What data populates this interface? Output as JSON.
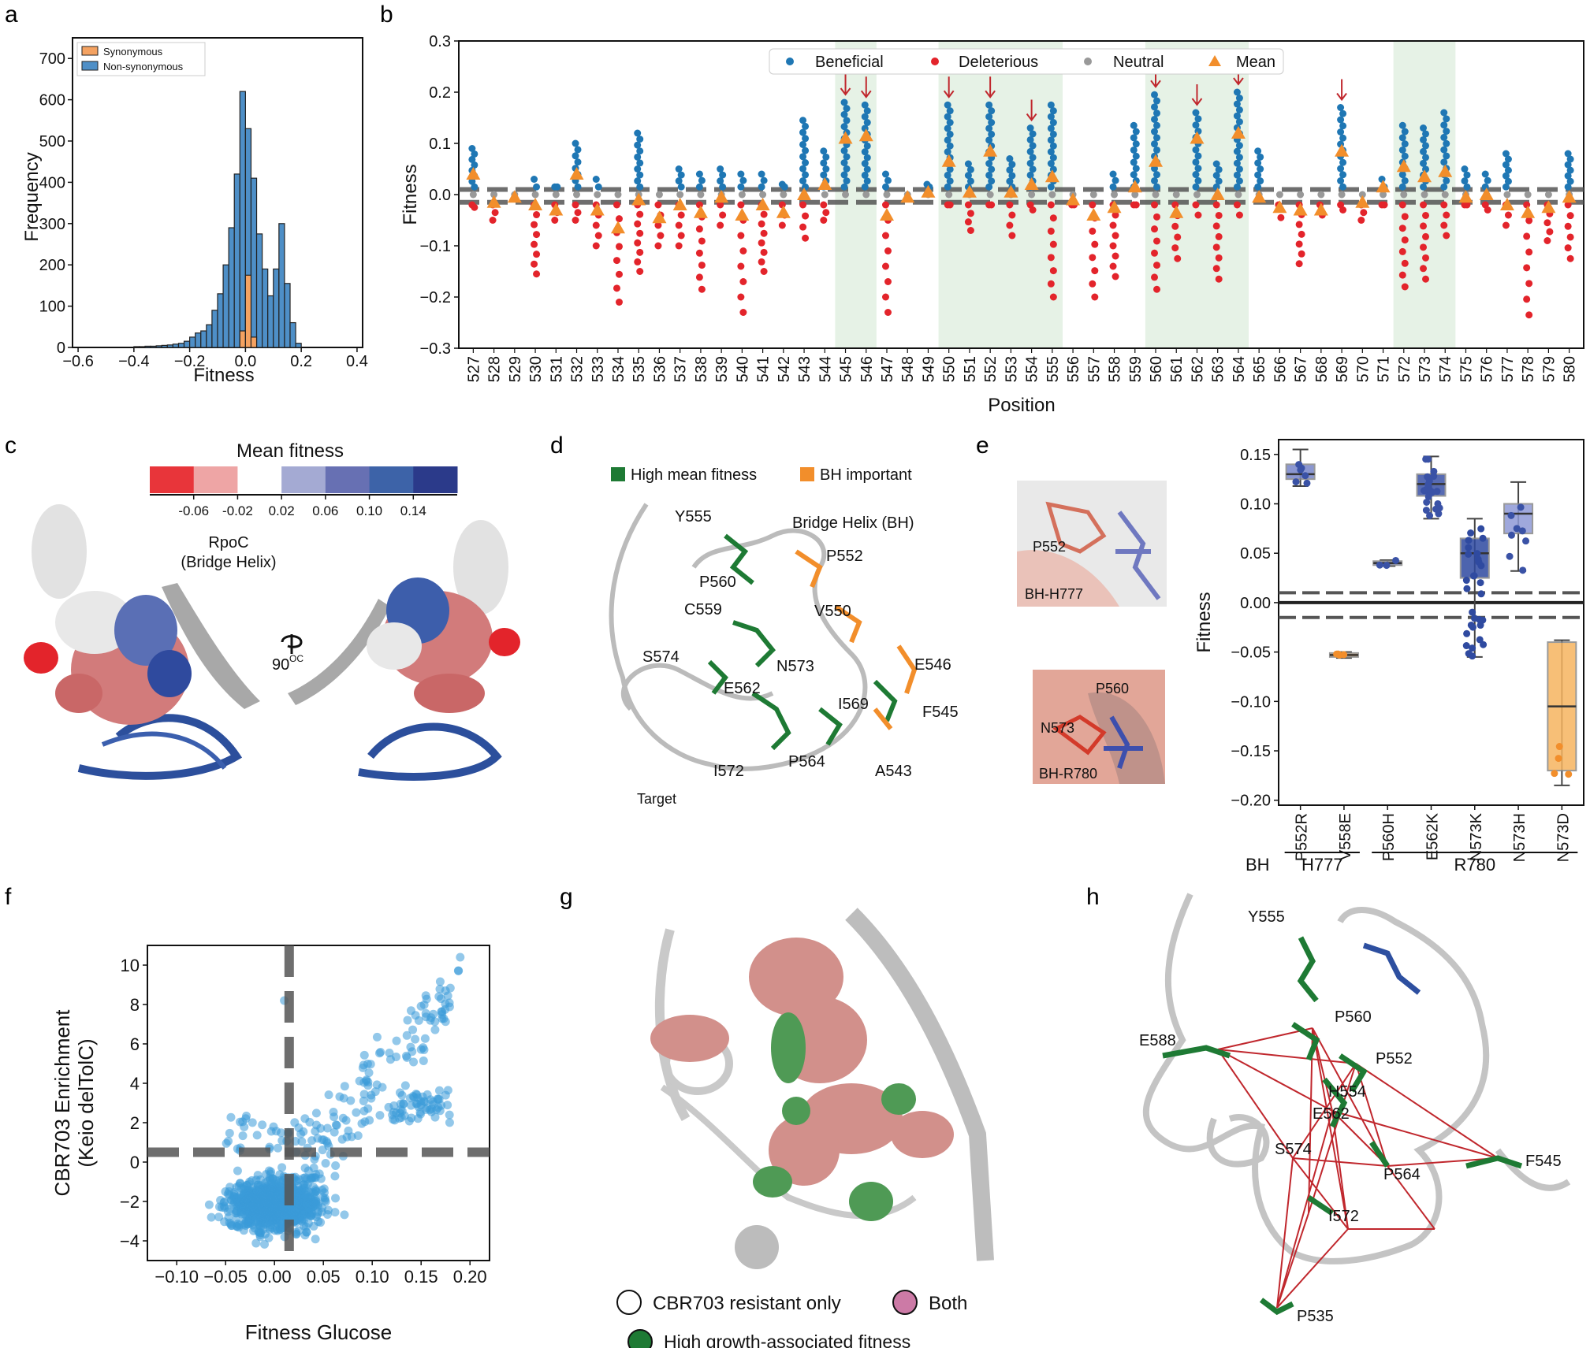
{
  "panels": [
    "a",
    "b",
    "c",
    "d",
    "e",
    "f",
    "g",
    "h"
  ],
  "colors": {
    "beneficial": "#1f77b4",
    "deleterious": "#e3242b",
    "neutral": "#999999",
    "mean": "#f28e2b",
    "synonymous": "#f4a261",
    "nonsyn": "#4e8fc7",
    "green": "#1e7a34",
    "orange": "#f28e2b",
    "scatter": "#3a9ad9",
    "shade": "#e6f2e6",
    "dash": "#555555"
  },
  "chart_data": [
    {
      "id": "a",
      "type": "bar",
      "xlabel": "Fitness",
      "ylabel": "Frequency",
      "xlim": [
        -0.62,
        0.42
      ],
      "ylim": [
        0,
        750
      ],
      "xticks": [
        "−0.6",
        "−0.4",
        "−0.2",
        "0.0",
        "0.2",
        "0.4"
      ],
      "yticks": [
        "0",
        "100",
        "200",
        "300",
        "400",
        "500",
        "600",
        "700"
      ],
      "legend": [
        "Synonymous",
        "Non-synonymous"
      ],
      "bin_width": 0.02,
      "series": [
        {
          "name": "Non-synonymous",
          "bin_starts": [
            -0.4,
            -0.38,
            -0.36,
            -0.34,
            -0.32,
            -0.3,
            -0.28,
            -0.26,
            -0.24,
            -0.22,
            -0.2,
            -0.18,
            -0.16,
            -0.14,
            -0.12,
            -0.1,
            -0.08,
            -0.06,
            -0.04,
            -0.02,
            0.0,
            0.02,
            0.04,
            0.06,
            0.08,
            0.1,
            0.12,
            0.14,
            0.16,
            0.18
          ],
          "values": [
            2,
            2,
            3,
            3,
            4,
            5,
            6,
            8,
            10,
            15,
            25,
            35,
            40,
            55,
            90,
            130,
            200,
            290,
            420,
            620,
            530,
            410,
            275,
            190,
            125,
            190,
            300,
            155,
            60,
            10
          ]
        },
        {
          "name": "Synonymous",
          "bin_starts": [
            -0.02,
            0.0,
            0.02
          ],
          "values": [
            40,
            175,
            25
          ]
        }
      ]
    },
    {
      "id": "b",
      "type": "scatter",
      "xlabel": "Position",
      "ylabel": "Fitness",
      "ylim": [
        -0.3,
        0.3
      ],
      "yticks": [
        "−0.3",
        "−0.2",
        "−0.1",
        "0.0",
        "0.1",
        "0.2",
        "0.3"
      ],
      "positions": [
        "527",
        "528",
        "529",
        "530",
        "531",
        "532",
        "533",
        "534",
        "535",
        "536",
        "537",
        "538",
        "539",
        "540",
        "541",
        "542",
        "543",
        "544",
        "545",
        "546",
        "547",
        "548",
        "549",
        "550",
        "551",
        "552",
        "553",
        "554",
        "555",
        "556",
        "557",
        "558",
        "559",
        "560",
        "561",
        "562",
        "563",
        "564",
        "565",
        "566",
        "567",
        "568",
        "569",
        "570",
        "571",
        "572",
        "573",
        "574",
        "575",
        "576",
        "577",
        "578",
        "579",
        "580"
      ],
      "means": [
        0.04,
        -0.015,
        -0.005,
        -0.02,
        -0.03,
        0.04,
        -0.03,
        -0.065,
        -0.01,
        -0.045,
        -0.02,
        -0.035,
        -0.005,
        -0.04,
        -0.02,
        -0.035,
        0.0,
        0.02,
        0.11,
        0.115,
        -0.04,
        -0.005,
        0.005,
        0.065,
        0.005,
        0.085,
        0.005,
        0.02,
        0.035,
        -0.01,
        -0.04,
        -0.025,
        0.015,
        0.065,
        -0.035,
        0.11,
        0.0,
        0.12,
        -0.005,
        -0.025,
        -0.03,
        -0.03,
        0.085,
        -0.015,
        0.015,
        0.055,
        0.035,
        0.045,
        -0.005,
        0.0,
        -0.02,
        -0.035,
        -0.025,
        -0.005
      ],
      "max_beneficial": [
        0.09,
        0,
        0,
        0.03,
        0.015,
        0.1,
        0.03,
        -0.04,
        0.12,
        0.01,
        0.05,
        0.04,
        0.05,
        0.04,
        0.04,
        0.02,
        0.145,
        0.085,
        0.18,
        0.175,
        0.04,
        0,
        0.02,
        0.175,
        0.06,
        0.175,
        0.07,
        0.13,
        0.175,
        0,
        0,
        0.04,
        0.135,
        0.195,
        0,
        0.16,
        0.06,
        0.2,
        0.085,
        0,
        0,
        0,
        0.17,
        0,
        0.03,
        0.135,
        0.13,
        0.16,
        0.05,
        0.04,
        0.08,
        0,
        0,
        0.08
      ],
      "min_deleterious": [
        -0.025,
        -0.05,
        -0.01,
        -0.155,
        -0.05,
        -0.05,
        -0.1,
        -0.21,
        -0.15,
        -0.1,
        -0.1,
        -0.185,
        -0.06,
        -0.23,
        -0.15,
        -0.06,
        -0.085,
        -0.05,
        0,
        0,
        -0.23,
        -0.01,
        0,
        -0.02,
        -0.07,
        -0.02,
        -0.08,
        -0.03,
        -0.2,
        -0.02,
        -0.2,
        -0.16,
        -0.02,
        -0.185,
        -0.125,
        -0.04,
        -0.165,
        -0.04,
        -0.01,
        -0.045,
        -0.135,
        -0.04,
        -0.03,
        -0.05,
        -0.02,
        -0.18,
        -0.165,
        -0.08,
        -0.02,
        -0.03,
        -0.06,
        -0.235,
        -0.09,
        -0.125
      ],
      "highlighted_ranges": [
        [
          "545",
          "546"
        ],
        [
          "550",
          "555"
        ],
        [
          "560",
          "564"
        ],
        [
          "572",
          "574"
        ]
      ],
      "arrows_at": [
        "545",
        "546",
        "550",
        "552",
        "554",
        "560",
        "562",
        "564",
        "569"
      ],
      "thresholds": [
        0.01,
        -0.015
      ],
      "legend": [
        "Beneficial",
        "Deleterious",
        "Neutral",
        "Mean"
      ]
    },
    {
      "id": "e",
      "type": "box",
      "ylabel": "Fitness",
      "ylim": [
        -0.2,
        0.16
      ],
      "yticks": [
        "0.15",
        "0.10",
        "0.05",
        "0.00",
        "−0.05",
        "−0.10",
        "−0.15",
        "−0.20"
      ],
      "categories": [
        "P552R",
        "V558E",
        "P560H",
        "E562K",
        "N573K",
        "N573H",
        "N573D"
      ],
      "medians": [
        0.13,
        -0.053,
        0.04,
        0.12,
        0.05,
        0.09,
        -0.105
      ],
      "q1": [
        0.125,
        -0.055,
        0.038,
        0.108,
        0.025,
        0.07,
        -0.17
      ],
      "q3": [
        0.14,
        -0.051,
        0.042,
        0.13,
        0.065,
        0.1,
        -0.04
      ],
      "whisker_low": [
        0.118,
        -0.056,
        0.037,
        0.085,
        -0.055,
        0.032,
        -0.185
      ],
      "whisker_high": [
        0.155,
        -0.05,
        0.043,
        0.148,
        0.085,
        0.122,
        -0.038
      ],
      "box_colors": [
        "#7785c9",
        "#f5a24a",
        "#4d5fad",
        "#3a52a6",
        "#2f4aa0",
        "#8f9ad6",
        "#f6b460"
      ],
      "groups": [
        {
          "label": "H777",
          "span": [
            "P552R",
            "V558E"
          ]
        },
        {
          "label": "R780",
          "span": [
            "P560H",
            "N573D"
          ]
        }
      ],
      "group_prefix": "BH",
      "thresholds": [
        0.01,
        -0.015
      ],
      "image_labels_top": [
        "P552",
        "BH-H777"
      ],
      "image_labels_bottom": [
        "P560",
        "N573",
        "BH-R780"
      ]
    },
    {
      "id": "f",
      "type": "scatter",
      "xlabel": "Fitness Glucose",
      "ylabel": "CBR703 Enrichment\n(Keio delTolC)",
      "ylabel_lines": [
        "CBR703 Enrichment",
        "(Keio delTolC)"
      ],
      "xlim": [
        -0.13,
        0.22
      ],
      "ylim": [
        -5,
        11
      ],
      "xticks": [
        "−0.10",
        "−0.05",
        "0.00",
        "0.05",
        "0.10",
        "0.15",
        "0.20"
      ],
      "xtick_values": [
        -0.1,
        -0.05,
        0.0,
        0.05,
        0.1,
        0.15,
        0.2
      ],
      "yticks": [
        "−4",
        "−2",
        "0",
        "2",
        "4",
        "6",
        "8",
        "10"
      ],
      "ytick_values": [
        -4,
        -2,
        0,
        2,
        4,
        6,
        8,
        10
      ],
      "vline": 0.015,
      "hline": 0.5,
      "note": "~1000 points, dense cluster near (0,-2), trend to (0.19,10.4)"
    }
  ],
  "panel_c": {
    "colorbar_title": "Mean fitness",
    "colorbar_ticks": [
      "-0.06",
      "-0.02",
      "0.02",
      "0.06",
      "0.10",
      "0.14"
    ],
    "colorbar_colors": [
      "#e8353a",
      "#eea5a5",
      "#ffffff",
      "#a4aad3",
      "#6770b3",
      "#3d63a8",
      "#2b3a8a"
    ],
    "label_main": "RpoC",
    "label_sub": "(Bridge Helix)",
    "rotation": "90",
    "rotation_unit": "OC"
  },
  "panel_d": {
    "legend": [
      "High mean fitness",
      "BH important"
    ],
    "title": "Bridge Helix (BH)",
    "residues": [
      "Y555",
      "P552",
      "P560",
      "C559",
      "V550",
      "S574",
      "N573",
      "E562",
      "E546",
      "F545",
      "I569",
      "I572",
      "P564",
      "A543"
    ],
    "target": "Target"
  },
  "panel_g": {
    "legend": [
      "CBR703 resistant only",
      "Both",
      "High growth-associated fitness"
    ]
  },
  "panel_h": {
    "residues": [
      "Y555",
      "P560",
      "E588",
      "P552",
      "H554",
      "E562",
      "S574",
      "P564",
      "F545",
      "I572",
      "P535"
    ]
  }
}
